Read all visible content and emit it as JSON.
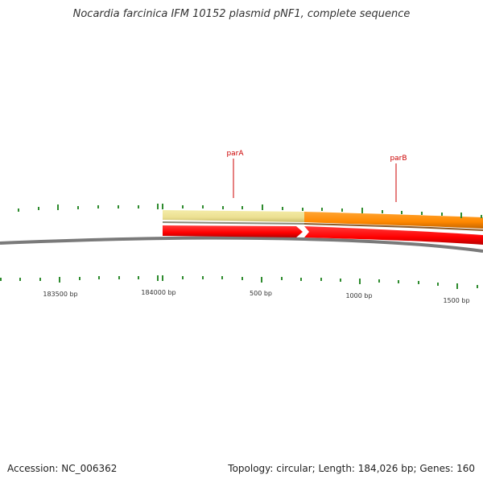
{
  "title": "Nocardia farcinica IFM 10152 plasmid pNF1, complete sequence",
  "footer": {
    "accession": "Accession: NC_006362",
    "summary": "Topology: circular; Length: 184,026 bp; Genes: 160"
  },
  "colors": {
    "backbone": "#808080",
    "tick": "#2e8b2e",
    "label_red": "#cc0000",
    "cds_red": "#ff0000",
    "gene_pale": "#eee39a",
    "gene_orange": "#ff8c00",
    "axis_text": "#333333"
  },
  "map": {
    "scale_labels": [
      {
        "text": "183500 bp"
      },
      {
        "text": "184000 bp"
      },
      {
        "text": "500 bp"
      },
      {
        "text": "1000 bp"
      },
      {
        "text": "1500 bp"
      }
    ],
    "gene_labels": [
      {
        "text": "parA"
      },
      {
        "text": "parB"
      }
    ]
  }
}
